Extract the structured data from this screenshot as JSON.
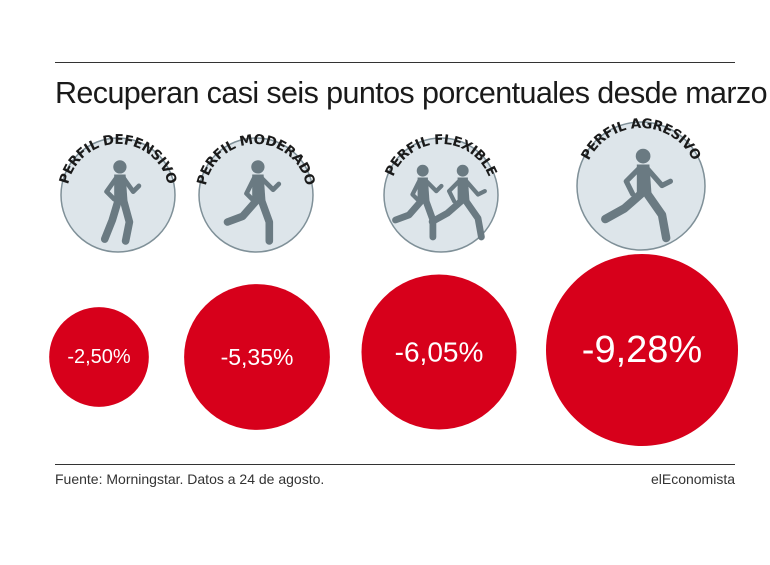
{
  "title": "Recuperan casi seis puntos porcentuales desde marzo",
  "source": "Fuente: Morningstar. Datos a 24 de agosto.",
  "brand": "elEconomista",
  "colors": {
    "bubble": "#d7001b",
    "icon_circle_fill": "#dde5ea",
    "icon_circle_stroke": "#7f9098",
    "runner": "#6a7a82"
  },
  "chart_data": {
    "type": "bubble",
    "title": "Recuperan casi seis puntos porcentuales desde marzo",
    "categories": [
      "PERFIL DEFENSIVO",
      "PERFIL MODERADO",
      "PERFIL FLEXIBLE",
      "PERFIL AGRESIVO"
    ],
    "values": [
      -2.5,
      -5.35,
      -6.05,
      -9.28
    ],
    "value_labels": [
      "-2,50%",
      "-5,35%",
      "-6,05%",
      "-9,28%"
    ],
    "icons": [
      "runner-jogging-icon",
      "runner-striding-icon",
      "two-runners-icon",
      "runner-sprinting-icon"
    ]
  }
}
